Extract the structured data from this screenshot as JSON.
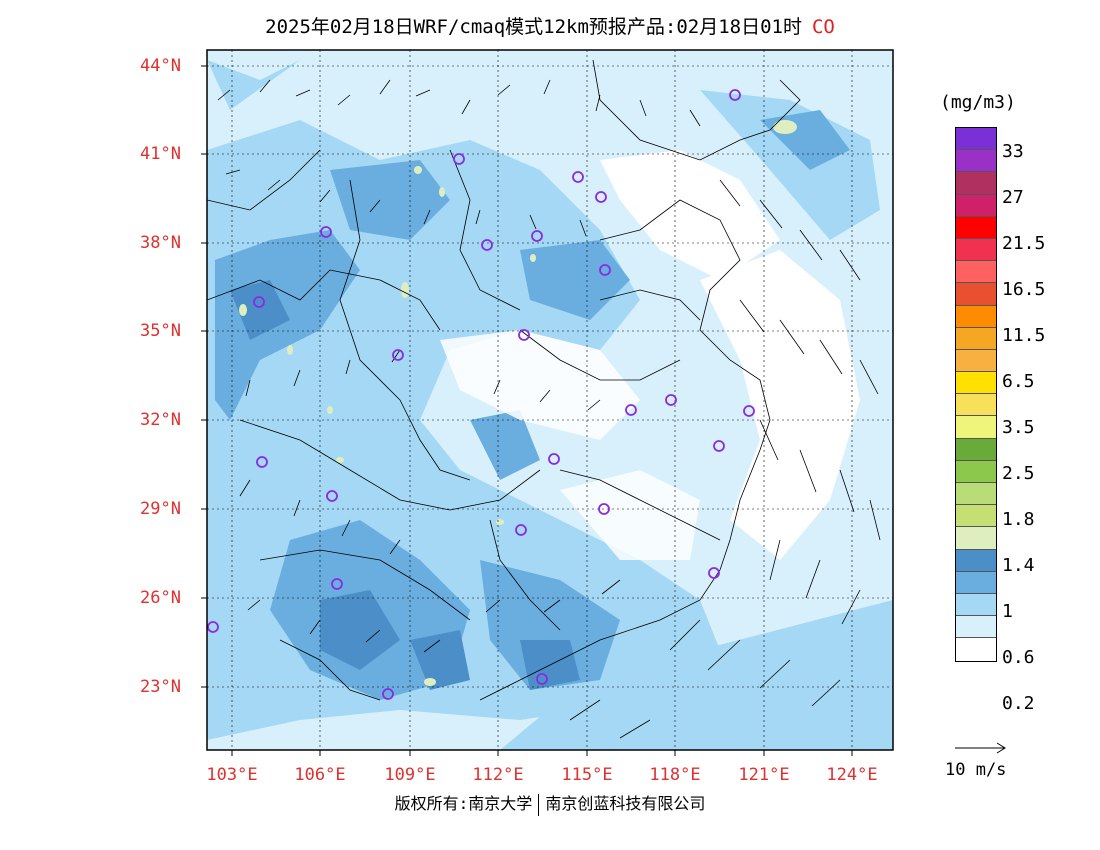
{
  "title": {
    "text": "2025年02月18日WRF/cmaq模式12km预报产品:02月18日01时",
    "species": "CO"
  },
  "latitude_labels": [
    "44°N",
    "41°N",
    "38°N",
    "35°N",
    "32°N",
    "29°N",
    "26°N",
    "23°N"
  ],
  "longitude_labels": [
    "103°E",
    "106°E",
    "109°E",
    "112°E",
    "115°E",
    "118°E",
    "121°E",
    "124°E"
  ],
  "colorbar": {
    "unit": "(mg/m3)",
    "labels": [
      "33",
      "27",
      "21.5",
      "16.5",
      "11.5",
      "6.5",
      "3.5",
      "2.5",
      "1.8",
      "1.4",
      "1",
      "0.6",
      "0.2"
    ],
    "colors": [
      "#7b2fd6",
      "#9b30c8",
      "#b03060",
      "#d0206a",
      "#ff0000",
      "#f23050",
      "#ff6060",
      "#e85030",
      "#ff8c00",
      "#f5a623",
      "#f8b040",
      "#ffe000",
      "#f7e05a",
      "#eef57a",
      "#6aaa3a",
      "#8cc84b",
      "#b7dc78",
      "#c6df74",
      "#dfeebf",
      "#4c8fc8",
      "#6aaee0",
      "#a5d8f5",
      "#d8f0fb",
      "#ffffff"
    ],
    "colors_note": "top-to-bottom color order"
  },
  "wind_key": {
    "label": "10 m/s"
  },
  "footer": {
    "left": "版权所有:南京大学",
    "right": "南京创蓝科技有限公司"
  },
  "site_markers_color": "#8a2be2",
  "legend": {
    "cell_count": 24
  }
}
